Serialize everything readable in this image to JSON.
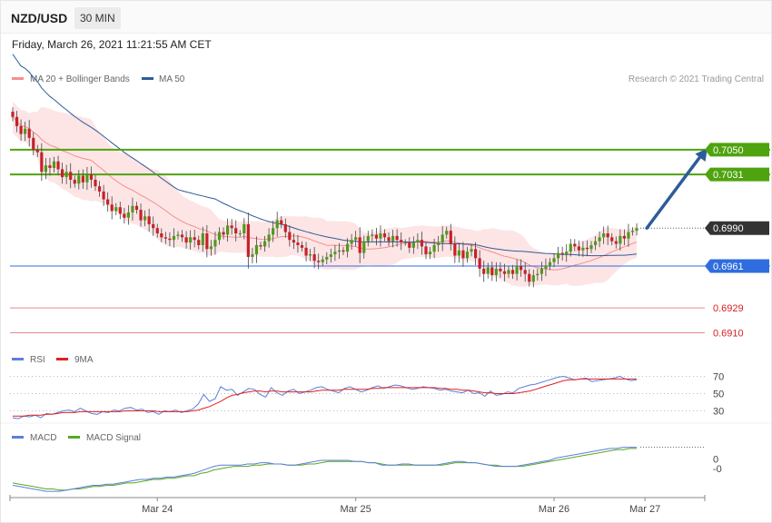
{
  "header": {
    "pair": "NZD/USD",
    "timeframe": "30 MIN",
    "datetime": "Friday, March 26, 2021 11:21:55 AM CET"
  },
  "credit": "Research © 2021 Trading Central",
  "legend_price": {
    "ma20": {
      "label": "MA 20 + Bollinger Bands",
      "color": "#f48f8f"
    },
    "ma50": {
      "label": "MA 50",
      "color": "#2e5c99"
    }
  },
  "legend_rsi": {
    "rsi": {
      "label": "RSI",
      "color": "#5b7fdc"
    },
    "ma9": {
      "label": "9MA",
      "color": "#e02020"
    }
  },
  "legend_macd": {
    "macd": {
      "label": "MACD",
      "color": "#5b7fdc"
    },
    "signal": {
      "label": "MACD Signal",
      "color": "#5aa820"
    }
  },
  "x_axis": {
    "ticks": [
      {
        "label": "Mar 24",
        "bar": 35
      },
      {
        "label": "Mar 25",
        "bar": 83
      },
      {
        "label": "Mar 26",
        "bar": 131
      },
      {
        "label": "Mar 27",
        "bar": 153
      }
    ]
  },
  "chart_data": [
    {
      "type": "candlestick",
      "title": "NZD/USD 30 MIN",
      "y_range": [
        0.6902,
        0.7095
      ],
      "colors": {
        "up": "#4f9a1a",
        "down": "#c8202a",
        "resistance": "#4fa30f",
        "current": "#333333",
        "support_primary": "#2f6ddf",
        "support_secondary": "#e05757"
      },
      "levels": [
        {
          "label": "0.7050",
          "value": 0.705,
          "kind": "resistance"
        },
        {
          "label": "0.7031",
          "value": 0.7031,
          "kind": "resistance"
        },
        {
          "label": "0.6990",
          "value": 0.699,
          "kind": "current"
        },
        {
          "label": "0.6961",
          "value": 0.6961,
          "kind": "support_primary"
        },
        {
          "label": "0.6929",
          "value": 0.6929,
          "kind": "support_secondary"
        },
        {
          "label": "0.6910",
          "value": 0.691,
          "kind": "support_secondary"
        }
      ],
      "projection": {
        "from_bar": 153,
        "from_value": 0.699,
        "to_bar": 167,
        "to_value": 0.7051
      },
      "closes": [
        0.7075,
        0.7068,
        0.7062,
        0.7066,
        0.7059,
        0.705,
        0.7048,
        0.7033,
        0.7038,
        0.7036,
        0.7041,
        0.7035,
        0.7029,
        0.7033,
        0.7027,
        0.7024,
        0.703,
        0.7025,
        0.7031,
        0.7027,
        0.7022,
        0.7018,
        0.7012,
        0.7008,
        0.7003,
        0.7006,
        0.7001,
        0.6998,
        0.7002,
        0.7007,
        0.7004,
        0.6996,
        0.6999,
        0.6993,
        0.699,
        0.6986,
        0.6983,
        0.6982,
        0.6981,
        0.6984,
        0.6985,
        0.6983,
        0.6979,
        0.6983,
        0.6981,
        0.6977,
        0.6986,
        0.6974,
        0.6976,
        0.6981,
        0.6987,
        0.6985,
        0.6992,
        0.699,
        0.6986,
        0.6986,
        0.6993,
        0.6968,
        0.697,
        0.6977,
        0.6976,
        0.698,
        0.6985,
        0.699,
        0.6996,
        0.6993,
        0.6987,
        0.6981,
        0.6979,
        0.6977,
        0.6975,
        0.6969,
        0.697,
        0.6965,
        0.6964,
        0.6966,
        0.6968,
        0.697,
        0.6972,
        0.6973,
        0.6972,
        0.6978,
        0.6981,
        0.6983,
        0.6971,
        0.698,
        0.6984,
        0.6985,
        0.6982,
        0.6986,
        0.6983,
        0.698,
        0.6984,
        0.6981,
        0.6979,
        0.6979,
        0.6975,
        0.6979,
        0.6981,
        0.6976,
        0.697,
        0.6972,
        0.6977,
        0.6979,
        0.6985,
        0.6988,
        0.6978,
        0.6969,
        0.6973,
        0.6967,
        0.6972,
        0.6974,
        0.6967,
        0.6959,
        0.6955,
        0.696,
        0.6954,
        0.6959,
        0.6957,
        0.6955,
        0.6958,
        0.6955,
        0.6961,
        0.6958,
        0.6955,
        0.6949,
        0.6954,
        0.6955,
        0.6959,
        0.6961,
        0.6964,
        0.6967,
        0.6971,
        0.697,
        0.6972,
        0.6978,
        0.6976,
        0.6973,
        0.6975,
        0.6974,
        0.6977,
        0.698,
        0.6983,
        0.6986,
        0.6983,
        0.698,
        0.6978,
        0.6984,
        0.6982,
        0.6987,
        0.6988,
        0.699
      ]
    },
    {
      "type": "line",
      "title": "RSI",
      "y_range": [
        20,
        80
      ],
      "y_ticks": [
        70,
        50,
        30
      ],
      "series": [
        {
          "name": "RSI",
          "values": [
            22,
            21,
            24,
            23,
            25,
            22,
            27,
            26,
            28,
            30,
            31,
            29,
            33,
            30,
            27,
            26,
            29,
            28,
            31,
            30,
            33,
            34,
            31,
            32,
            28,
            29,
            26,
            30,
            29,
            31,
            28,
            30,
            32,
            38,
            49,
            41,
            44,
            58,
            54,
            55,
            48,
            52,
            56,
            55,
            49,
            46,
            57,
            51,
            48,
            53,
            55,
            50,
            52,
            54,
            57,
            58,
            55,
            53,
            51,
            56,
            58,
            55,
            52,
            54,
            57,
            59,
            56,
            58,
            60,
            59,
            57,
            55,
            56,
            58,
            57,
            56,
            54,
            55,
            53,
            52,
            51,
            54,
            50,
            51,
            47,
            53,
            48,
            49,
            52,
            51,
            56,
            58,
            60,
            61,
            63,
            65,
            67,
            69,
            70,
            68,
            66,
            67,
            68,
            64,
            65,
            66,
            67,
            68,
            70,
            67,
            65,
            66
          ]
        },
        {
          "name": "9MA",
          "values": [
            24,
            24,
            24,
            25,
            25,
            25,
            26,
            26,
            27,
            28,
            28,
            28,
            29,
            29,
            29,
            29,
            29,
            29,
            29,
            29,
            30,
            30,
            30,
            30,
            30,
            30,
            29,
            29,
            29,
            29,
            29,
            29,
            30,
            31,
            33,
            35,
            38,
            41,
            45,
            48,
            49,
            51,
            52,
            53,
            53,
            52,
            53,
            53,
            52,
            52,
            52,
            52,
            52,
            52,
            53,
            54,
            54,
            54,
            54,
            55,
            55,
            55,
            55,
            55,
            56,
            56,
            57,
            57,
            57,
            57,
            57,
            57,
            57,
            57,
            57,
            57,
            56,
            56,
            55,
            55,
            54,
            54,
            53,
            52,
            51,
            51,
            50,
            50,
            50,
            50,
            51,
            52,
            53,
            55,
            57,
            59,
            61,
            63,
            65,
            66,
            66,
            67,
            67,
            67,
            67,
            67,
            67,
            67,
            67,
            67,
            67,
            67
          ]
        }
      ]
    },
    {
      "type": "line",
      "title": "MACD",
      "y_range": [
        -0.003,
        0.0012
      ],
      "y_ticks": [
        {
          "label": "0",
          "value": 0
        },
        {
          "label": "-0",
          "value": -0.0008
        }
      ],
      "series": [
        {
          "name": "MACD",
          "values": [
            -0.0022,
            -0.0023,
            -0.0024,
            -0.0025,
            -0.0026,
            -0.0027,
            -0.0027,
            -0.0027,
            -0.0026,
            -0.0025,
            -0.0024,
            -0.0023,
            -0.0022,
            -0.0022,
            -0.0021,
            -0.0021,
            -0.002,
            -0.0019,
            -0.0018,
            -0.0017,
            -0.0017,
            -0.0016,
            -0.0016,
            -0.0015,
            -0.0015,
            -0.0014,
            -0.0013,
            -0.0012,
            -0.001,
            -0.0008,
            -0.0006,
            -0.0005,
            -0.0005,
            -0.0005,
            -0.0005,
            -0.0004,
            -0.0004,
            -0.0003,
            -0.0003,
            -0.0004,
            -0.0004,
            -0.0005,
            -0.0005,
            -0.0004,
            -0.0003,
            -0.0002,
            -0.0001,
            -0.0001,
            -0.0001,
            -0.0001,
            -0.0001,
            -0.0002,
            -0.0002,
            -0.0003,
            -0.0003,
            -0.0005,
            -0.0005,
            -0.0005,
            -0.0004,
            -0.0004,
            -0.0005,
            -0.0005,
            -0.0005,
            -0.0005,
            -0.0004,
            -0.0003,
            -0.0002,
            -0.0002,
            -0.0003,
            -0.0003,
            -0.0004,
            -0.0005,
            -0.0006,
            -0.0006,
            -0.0006,
            -0.0006,
            -0.0005,
            -0.0004,
            -0.0003,
            -0.0002,
            -0.0001,
            0.0001,
            0.0002,
            0.0003,
            0.0004,
            0.0005,
            0.0006,
            0.0007,
            0.0008,
            0.0009,
            0.0009,
            0.001,
            0.001,
            0.001
          ]
        },
        {
          "name": "MACD Signal",
          "values": [
            -0.002,
            -0.0021,
            -0.0022,
            -0.0023,
            -0.0024,
            -0.0025,
            -0.0025,
            -0.0026,
            -0.0026,
            -0.0025,
            -0.0025,
            -0.0024,
            -0.0023,
            -0.0023,
            -0.0022,
            -0.0022,
            -0.0021,
            -0.002,
            -0.002,
            -0.0019,
            -0.0018,
            -0.0017,
            -0.0017,
            -0.0016,
            -0.0016,
            -0.0015,
            -0.0014,
            -0.0014,
            -0.0012,
            -0.0011,
            -0.0009,
            -0.0008,
            -0.0007,
            -0.0006,
            -0.0006,
            -0.0006,
            -0.0005,
            -0.0005,
            -0.0004,
            -0.0004,
            -0.0004,
            -0.0005,
            -0.0005,
            -0.0005,
            -0.0004,
            -0.0004,
            -0.0003,
            -0.0002,
            -0.0002,
            -0.0002,
            -0.0002,
            -0.0002,
            -0.0002,
            -0.0003,
            -0.0003,
            -0.0004,
            -0.0005,
            -0.0005,
            -0.0005,
            -0.0005,
            -0.0005,
            -0.0005,
            -0.0005,
            -0.0005,
            -0.0005,
            -0.0004,
            -0.0003,
            -0.0003,
            -0.0003,
            -0.0003,
            -0.0004,
            -0.0005,
            -0.0005,
            -0.0006,
            -0.0006,
            -0.0006,
            -0.0006,
            -0.0005,
            -0.0004,
            -0.0003,
            -0.0002,
            -0.0001,
            0.0,
            0.0001,
            0.0002,
            0.0003,
            0.0004,
            0.0005,
            0.0006,
            0.0007,
            0.0008,
            0.0008,
            0.0009,
            0.0009
          ]
        }
      ]
    }
  ]
}
